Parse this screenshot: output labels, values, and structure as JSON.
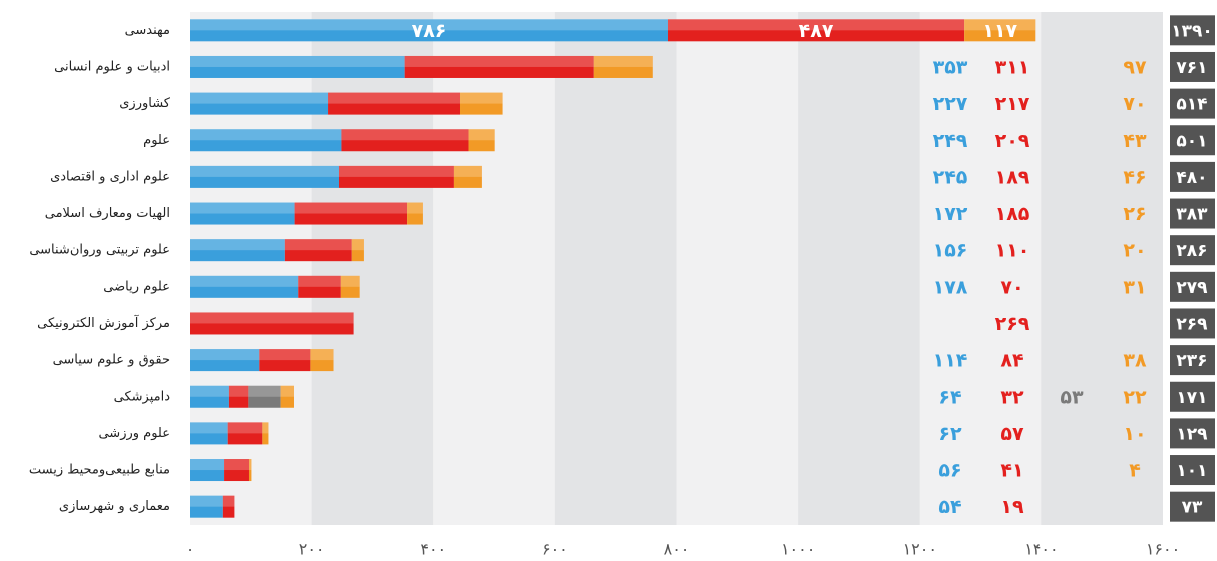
{
  "chart_data": {
    "type": "stacked-bar-horizontal",
    "categories": [
      "مهندسی",
      "ادبیات و علوم انسانی",
      "کشاورزی",
      "علوم",
      "علوم اداری و اقتصادی",
      "الهیات ومعارف اسلامی",
      "علوم تربیتی وروان‌شناسی",
      "علوم ریاضی",
      "مرکز آموزش الکترونیکی",
      "حقوق و علوم سیاسی",
      "دامپزشکی",
      "علوم ورزشی",
      "منابع طبیعی‌ومحیط زیست",
      "معماری و شهرسازی"
    ],
    "series": [
      {
        "color": "#3a9fdc",
        "values": [
          786,
          353,
          227,
          249,
          245,
          172,
          156,
          178,
          null,
          114,
          64,
          62,
          56,
          54
        ],
        "value_labels": [
          "۷۸۶",
          "۳۵۳",
          "۲۲۷",
          "۲۴۹",
          "۲۴۵",
          "۱۷۲",
          "۱۵۶",
          "۱۷۸",
          null,
          "۱۱۴",
          "۶۴",
          "۶۲",
          "۵۶",
          "۵۴"
        ]
      },
      {
        "color": "#e3201e",
        "values": [
          487,
          311,
          217,
          209,
          189,
          185,
          110,
          70,
          269,
          84,
          32,
          57,
          41,
          19
        ],
        "value_labels": [
          "۴۸۷",
          "۳۱۱",
          "۲۱۷",
          "۲۰۹",
          "۱۸۹",
          "۱۸۵",
          "۱۱۰",
          "۷۰",
          "۲۶۹",
          "۸۴",
          "۳۲",
          "۵۷",
          "۴۱",
          "۱۹"
        ]
      },
      {
        "color": "#7a7a7a",
        "values": [
          null,
          null,
          null,
          null,
          null,
          null,
          null,
          null,
          null,
          null,
          53,
          null,
          null,
          null
        ],
        "value_labels": [
          null,
          null,
          null,
          null,
          null,
          null,
          null,
          null,
          null,
          null,
          "۵۳",
          null,
          null,
          null
        ]
      },
      {
        "color": "#f29a26",
        "values": [
          117,
          97,
          70,
          43,
          46,
          26,
          20,
          31,
          null,
          38,
          22,
          10,
          4,
          null
        ],
        "value_labels": [
          "۱۱۷",
          "۹۷",
          "۷۰",
          "۴۳",
          "۴۶",
          "۲۶",
          "۲۰",
          "۳۱",
          null,
          "۳۸",
          "۲۲",
          "۱۰",
          "۴",
          null
        ]
      }
    ],
    "totals": [
      1390,
      761,
      514,
      501,
      480,
      383,
      286,
      279,
      269,
      236,
      171,
      129,
      101,
      73
    ],
    "total_labels": [
      "۱۳۹۰",
      "۷۶۱",
      "۵۱۴",
      "۵۰۱",
      "۴۸۰",
      "۳۸۳",
      "۲۸۶",
      "۲۷۹",
      "۲۶۹",
      "۲۳۶",
      "۱۷۱",
      "۱۲۹",
      "۱۰۱",
      "۷۳"
    ],
    "xlim": [
      0,
      1600
    ],
    "xticks": [
      {
        "value": 0,
        "label": "۰"
      },
      {
        "value": 200,
        "label": "۲۰۰"
      },
      {
        "value": 400,
        "label": "۴۰۰"
      },
      {
        "value": 600,
        "label": "۶۰۰"
      },
      {
        "value": 800,
        "label": "۸۰۰"
      },
      {
        "value": 1000,
        "label": "۱۰۰۰"
      },
      {
        "value": 1200,
        "label": "۱۲۰۰"
      },
      {
        "value": 1400,
        "label": "۱۴۰۰"
      },
      {
        "value": 1600,
        "label": "۱۶۰۰"
      }
    ]
  }
}
